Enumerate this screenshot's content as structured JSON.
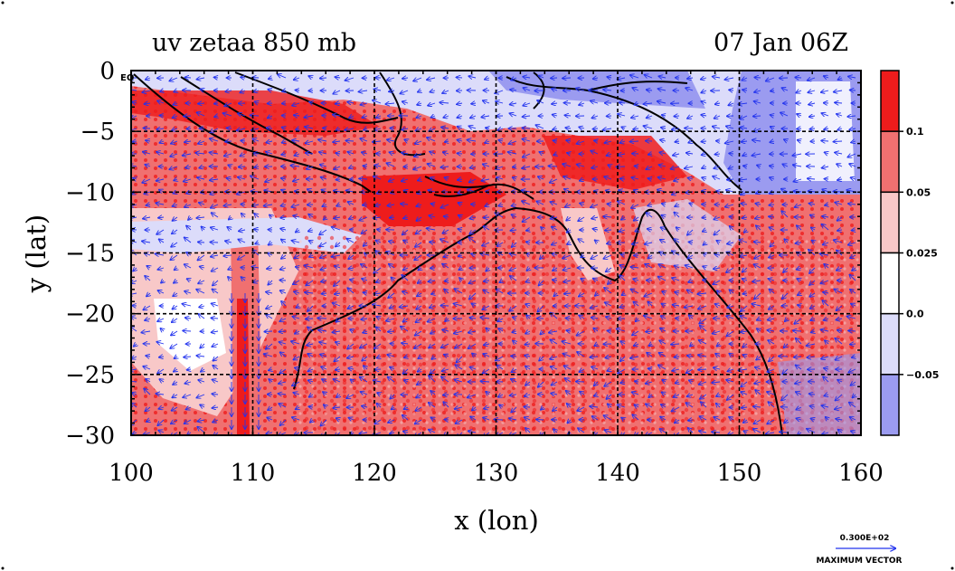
{
  "chart_data": {
    "type": "heatmap",
    "title_left": "uv zetaa 850 mb",
    "title_right": "07 Jan 06Z",
    "xlabel": "x (lon)",
    "ylabel": "y (lat)",
    "xlim": [
      100,
      160
    ],
    "ylim": [
      -30,
      0
    ],
    "x_ticks": [
      100,
      110,
      120,
      130,
      140,
      150,
      160
    ],
    "y_ticks": [
      0,
      -5,
      -10,
      -15,
      -20,
      -25,
      -30
    ],
    "x_tick_labels": [
      "100",
      "110",
      "120",
      "130",
      "140",
      "150",
      "160"
    ],
    "y_tick_labels": [
      "0",
      "−5",
      "−10",
      "−15",
      "−20",
      "−25",
      "−30"
    ],
    "corner_label": "EQ",
    "colorbar": {
      "levels": [
        -0.05,
        0.0,
        0.025,
        0.05,
        0.1
      ],
      "level_labels": [
        "−0.05",
        "0.0",
        "0.025",
        "0.05",
        "0.1"
      ],
      "colors": [
        "#9b9bf0",
        "#dcdcfa",
        "#ffffff",
        "#f8c8c8",
        "#f07070",
        "#ee1c1c"
      ]
    },
    "vector_label_value": "0.300E+02",
    "vector_label_text": "MAXIMUM VECTOR",
    "grid": true
  },
  "colors": {
    "strong_pos": "#ee1c1c",
    "mod_pos": "#f07070",
    "weak_pos": "#f8c8c8",
    "weak_neg": "#dcdcfa",
    "strong_neg": "#9b9bf0",
    "vector": "#2233ee",
    "coast": "#000000"
  }
}
